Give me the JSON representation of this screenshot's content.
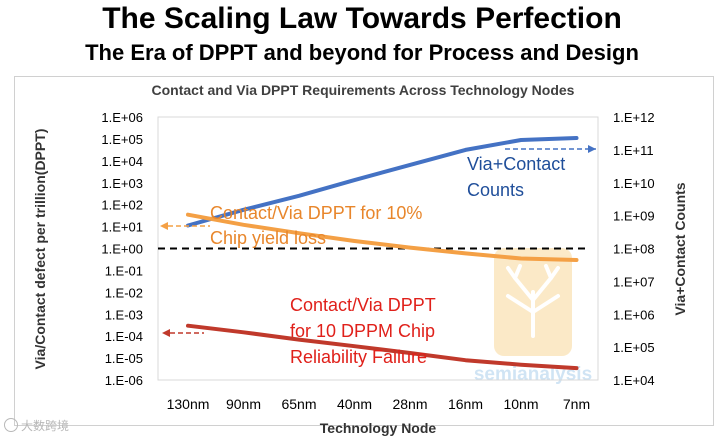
{
  "titles": {
    "main": "The Scaling Law Towards Perfection",
    "sub": "The Era of DPPT and beyond for Process and Design"
  },
  "chart_data": {
    "type": "line",
    "title": "Contact and Via DPPT Requirements Across Technology Nodes",
    "xlabel": "Technology Node",
    "ylabel_left": "Via/Contact defect per trillion(DPPT)",
    "ylabel_right": "Via+Contact Counts",
    "categories": [
      "130nm",
      "90nm",
      "65nm",
      "40nm",
      "28nm",
      "16nm",
      "10nm",
      "7nm"
    ],
    "y_left": {
      "scale": "log",
      "range": [
        1e-06,
        1000000.0
      ],
      "ticks": [
        "1.E-06",
        "1.E-05",
        "1.E-04",
        "1.E-03",
        "1.E-02",
        "1.E-01",
        "1.E+00",
        "1.E+01",
        "1.E+02",
        "1.E+03",
        "1.E+04",
        "1.E+05",
        "1.E+06"
      ]
    },
    "y_right": {
      "scale": "log",
      "range": [
        10000.0,
        1000000000000.0
      ],
      "ticks": [
        "1.E+04",
        "1.E+05",
        "1.E+06",
        "1.E+07",
        "1.E+08",
        "1.E+09",
        "1.E+10",
        "1.E+11",
        "1.E+12"
      ]
    },
    "series": [
      {
        "name": "Via+Contact Counts",
        "axis": "right",
        "color": "#4472c4",
        "values": [
          500000000.0,
          1500000000.0,
          4000000000.0,
          12000000000.0,
          35000000000.0,
          100000000000.0,
          200000000000.0,
          230000000000.0
        ]
      },
      {
        "name": "Contact/Via DPPT for 10% Chip yield loss",
        "axis": "left",
        "color": "#f4a045",
        "values": [
          35,
          12,
          5,
          2.2,
          1.1,
          0.6,
          0.35,
          0.3
        ]
      },
      {
        "name": "Contact/Via DPPT for 10 DPPM Chip Reliability Failure",
        "axis": "left",
        "color": "#c0392b",
        "values": [
          0.0003,
          0.00015,
          7e-05,
          3.5e-05,
          1.7e-05,
          8e-06,
          5e-06,
          3.5e-06
        ]
      }
    ],
    "reference_line": {
      "axis": "left",
      "value": 1,
      "style": "dashed",
      "color": "#000000"
    },
    "annotations": [
      {
        "id": "ann-counts",
        "lines": [
          "Via+Contact",
          "Counts"
        ],
        "color": "#1f4e9a"
      },
      {
        "id": "ann-yield",
        "lines": [
          "Contact/Via DPPT for 10%",
          "Chip yield loss"
        ],
        "color": "#e8862b"
      },
      {
        "id": "ann-rel",
        "lines": [
          "Contact/Via DPPT",
          "for 10 DPPM Chip",
          "Reliability Failure"
        ],
        "color": "#e0201a"
      }
    ],
    "grid": false,
    "legend": "none"
  },
  "watermarks": {
    "logo_text": "semianalysis",
    "corner_text": "大数跨境"
  }
}
